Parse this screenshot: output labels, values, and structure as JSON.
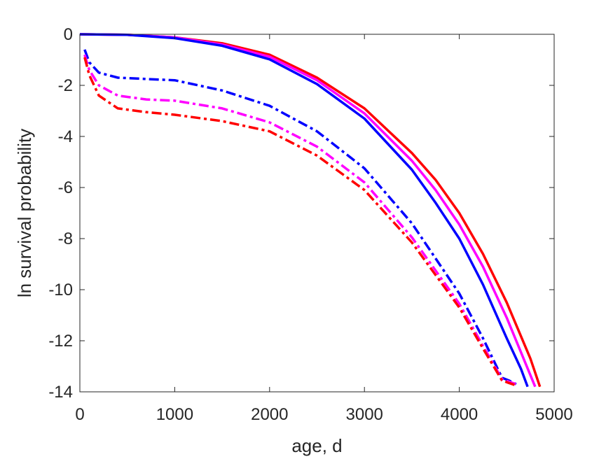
{
  "chart_data": {
    "type": "line",
    "title": "",
    "xlabel": "age, d",
    "ylabel": "ln survival probability",
    "xlim": [
      0,
      5000
    ],
    "ylim": [
      -14,
      0
    ],
    "xticks": [
      0,
      1000,
      2000,
      3000,
      4000,
      5000
    ],
    "yticks": [
      0,
      -2,
      -4,
      -6,
      -8,
      -10,
      -12,
      -14
    ],
    "xtick_labels": [
      "0",
      "1000",
      "2000",
      "3000",
      "4000",
      "5000"
    ],
    "ytick_labels": [
      "0",
      "-2",
      "-4",
      "-6",
      "-8",
      "-10",
      "-12",
      "-14"
    ],
    "grid": false,
    "box": true,
    "series": [
      {
        "color": "#ff0000",
        "style": "solid",
        "x": [
          0,
          500,
          1000,
          1500,
          2000,
          2500,
          3000,
          3500,
          3750,
          4000,
          4250,
          4500,
          4750,
          4850
        ],
        "y": [
          0,
          -0.02,
          -0.12,
          -0.35,
          -0.8,
          -1.7,
          -2.9,
          -4.65,
          -5.7,
          -7.0,
          -8.6,
          -10.5,
          -12.7,
          -13.8
        ]
      },
      {
        "color": "#ff00ff",
        "style": "solid",
        "x": [
          0,
          500,
          1000,
          1500,
          2000,
          2500,
          3000,
          3500,
          3750,
          4000,
          4250,
          4500,
          4700,
          4800
        ],
        "y": [
          0,
          -0.02,
          -0.12,
          -0.4,
          -0.88,
          -1.8,
          -3.1,
          -4.95,
          -6.1,
          -7.45,
          -9.1,
          -11.1,
          -12.9,
          -13.8
        ]
      },
      {
        "color": "#0000ff",
        "style": "solid",
        "x": [
          0,
          500,
          1000,
          1500,
          2000,
          2500,
          3000,
          3500,
          3750,
          4000,
          4250,
          4500,
          4650,
          4720
        ],
        "y": [
          0,
          -0.02,
          -0.15,
          -0.45,
          -0.98,
          -1.95,
          -3.3,
          -5.3,
          -6.6,
          -8.0,
          -9.8,
          -11.9,
          -13.1,
          -13.8
        ]
      },
      {
        "color": "#0000ff",
        "style": "dashdot",
        "x": [
          50,
          100,
          200,
          400,
          700,
          1000,
          1500,
          2000,
          2500,
          3000,
          3500,
          4000,
          4250,
          4450,
          4520,
          4600
        ],
        "y": [
          -0.6,
          -1.1,
          -1.5,
          -1.7,
          -1.75,
          -1.8,
          -2.2,
          -2.8,
          -3.8,
          -5.25,
          -7.4,
          -10.15,
          -11.9,
          -13.45,
          -13.55,
          -13.7
        ]
      },
      {
        "color": "#ff00ff",
        "style": "dashdot",
        "x": [
          50,
          100,
          200,
          400,
          700,
          1000,
          1500,
          2000,
          2500,
          3000,
          3500,
          4000,
          4250,
          4450,
          4520,
          4600
        ],
        "y": [
          -0.8,
          -1.4,
          -2.0,
          -2.4,
          -2.55,
          -2.6,
          -2.9,
          -3.45,
          -4.4,
          -5.8,
          -7.95,
          -10.55,
          -12.2,
          -13.5,
          -13.6,
          -13.7
        ]
      },
      {
        "color": "#ff0000",
        "style": "dashdot",
        "x": [
          50,
          100,
          200,
          400,
          700,
          1000,
          1500,
          2000,
          2500,
          3000,
          3500,
          4000,
          4250,
          4450,
          4520,
          4600
        ],
        "y": [
          -0.9,
          -1.6,
          -2.4,
          -2.9,
          -3.05,
          -3.15,
          -3.4,
          -3.8,
          -4.75,
          -6.1,
          -8.15,
          -10.7,
          -12.3,
          -13.55,
          -13.65,
          -13.75
        ]
      }
    ]
  }
}
